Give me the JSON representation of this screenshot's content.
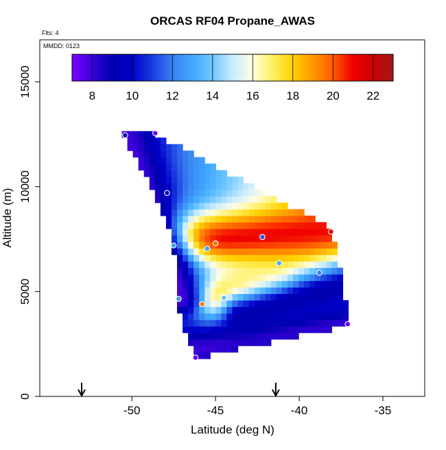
{
  "chart_data": {
    "type": "heatmap",
    "title": "ORCAS RF04 Propane_AWAS",
    "flights_label": "Flts: 4",
    "date_label": "MMDD: 0123",
    "xlabel": "Latitude (deg N)",
    "ylabel": "Altitude (m)",
    "xlim": [
      -55.5,
      -32.5
    ],
    "ylim": [
      0,
      17000
    ],
    "x_ticks": [
      -50,
      -45,
      -40,
      -35
    ],
    "y_ticks": [
      0,
      5000,
      10000,
      15000
    ],
    "colorbar": {
      "min": 7,
      "max": 23,
      "tick_values": [
        8,
        10,
        12,
        14,
        16,
        18,
        20,
        22
      ],
      "colors": [
        "#7f00ff",
        "#3a00d8",
        "#0000b0",
        "#0000c8",
        "#1a3ce0",
        "#3a80f0",
        "#40a8ff",
        "#70c8ff",
        "#c8ecff",
        "#fffde0",
        "#fff060",
        "#ffd000",
        "#ff9800",
        "#ff5a00",
        "#f00000",
        "#cc0000",
        "#a01818"
      ]
    },
    "grid_region": {
      "polygon": [
        [
          -50.6,
          12500
        ],
        [
          -48.6,
          12500
        ],
        [
          -38.0,
          8000
        ],
        [
          -37.0,
          3400
        ],
        [
          -46.2,
          1800
        ],
        [
          -47.3,
          4300
        ],
        [
          -47.5,
          7200
        ],
        [
          -48.6,
          9700
        ]
      ],
      "cell_lat": 0.33,
      "cell_alt": 310,
      "base_value": 12.5
    },
    "field_features": [
      {
        "kind": "band",
        "lat1": -47.4,
        "alt1": 7400,
        "lat2": -38.0,
        "alt2": 7900,
        "peak": 21.0,
        "width_alt": 900,
        "sign": 1
      },
      {
        "kind": "band",
        "lat1": -46.5,
        "alt1": 4500,
        "lat2": -41.0,
        "alt2": 4900,
        "peak": 20.8,
        "width_alt": 800,
        "sign": 1
      },
      {
        "kind": "band",
        "lat1": -50.6,
        "alt1": 12300,
        "lat2": -47.0,
        "alt2": 4700,
        "peak": 7.8,
        "width_alt": 1100,
        "sign": -1
      },
      {
        "kind": "band",
        "lat1": -46.2,
        "alt1": 2200,
        "lat2": -37.1,
        "alt2": 3500,
        "peak": 8.0,
        "width_alt": 900,
        "sign": -1
      },
      {
        "kind": "band",
        "lat1": -43.5,
        "alt1": 3800,
        "lat2": -37.5,
        "alt2": 5200,
        "peak": 9.0,
        "width_alt": 900,
        "sign": -1
      }
    ],
    "gradient": {
      "lat_start": -49.5,
      "lat_end": -39.5,
      "v_start": 10.0,
      "v_end": 17.5
    },
    "sample_points": [
      {
        "lat": -50.4,
        "alt": 12450,
        "value": 8.6
      },
      {
        "lat": -48.6,
        "alt": 12550,
        "value": 7.3
      },
      {
        "lat": -47.9,
        "alt": 9700,
        "value": 10.2
      },
      {
        "lat": -47.5,
        "alt": 7200,
        "value": 12.8
      },
      {
        "lat": -45.0,
        "alt": 7300,
        "value": 19.6
      },
      {
        "lat": -45.5,
        "alt": 7050,
        "value": 12.9
      },
      {
        "lat": -42.2,
        "alt": 7600,
        "value": 11.4
      },
      {
        "lat": -38.1,
        "alt": 7850,
        "value": 21.3
      },
      {
        "lat": -41.2,
        "alt": 6350,
        "value": 13.2
      },
      {
        "lat": -38.8,
        "alt": 5900,
        "value": 12.0
      },
      {
        "lat": -47.2,
        "alt": 4650,
        "value": 12.6
      },
      {
        "lat": -44.5,
        "alt": 4700,
        "value": 13.8
      },
      {
        "lat": -45.8,
        "alt": 4400,
        "value": 19.4
      },
      {
        "lat": -37.1,
        "alt": 3450,
        "value": 7.4
      },
      {
        "lat": -46.2,
        "alt": 1850,
        "value": 7.2
      }
    ],
    "arrows": [
      -53.0,
      -41.4
    ],
    "grid": false
  }
}
